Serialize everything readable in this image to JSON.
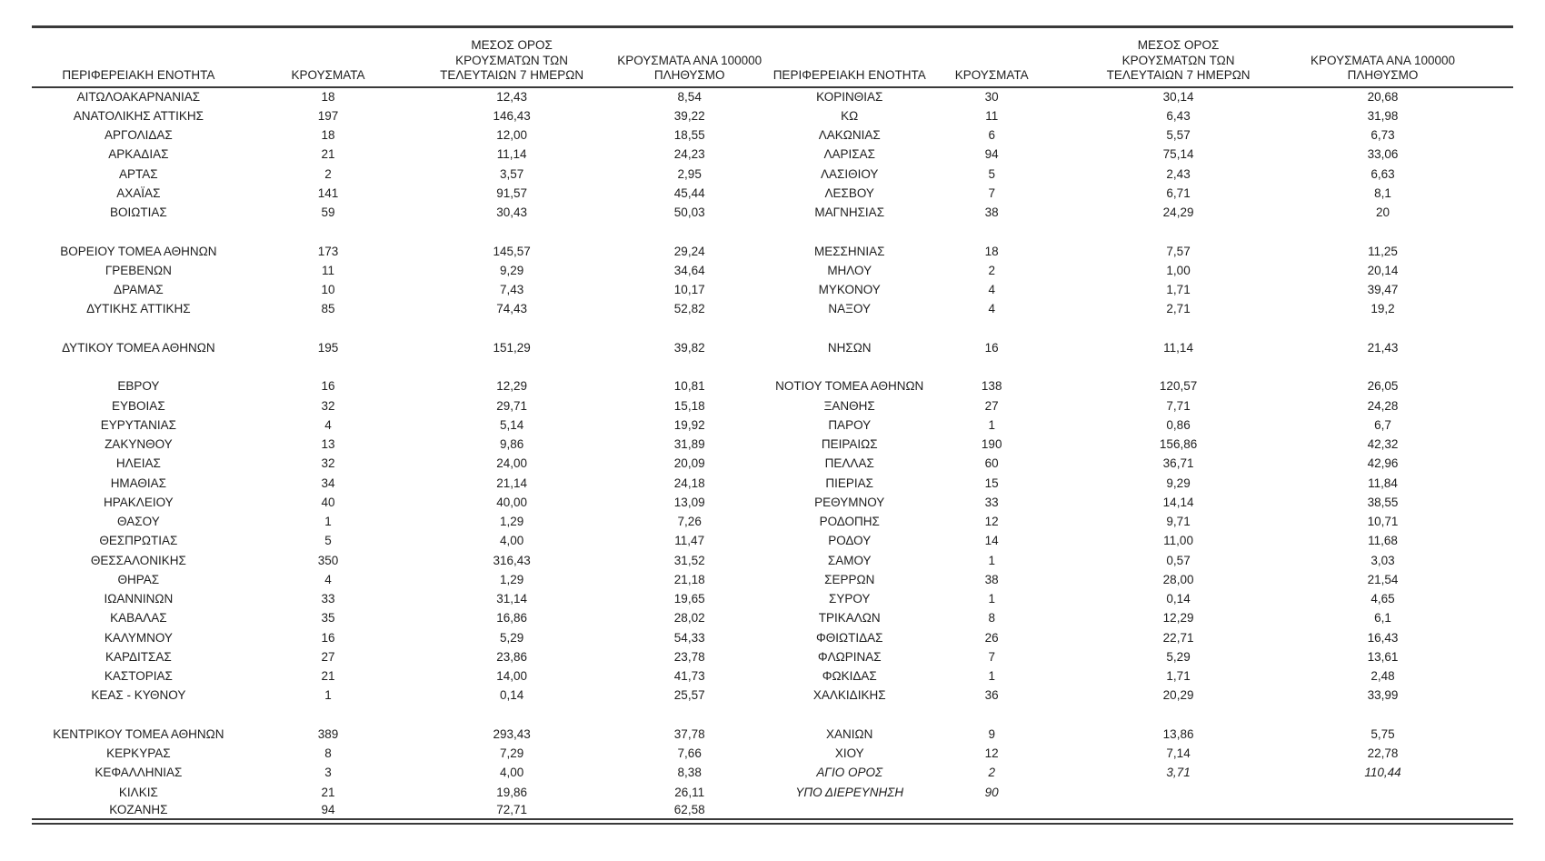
{
  "table": {
    "headers": {
      "region": "ΠΕΡΙΦΕΡΕΙΑΚΗ ΕΝΟΤΗΤΑ",
      "cases": "ΚΡΟΥΣΜΑΤΑ",
      "avg7_line1": "ΜΕΣΟΣ ΟΡΟΣ",
      "avg7_line2": "ΚΡΟΥΣΜΑΤΩΝ ΤΩΝ",
      "avg7_line3": "ΤΕΛΕΥΤΑΙΩΝ 7 ΗΜΕΡΩΝ",
      "per100k_line1": "ΚΡΟΥΣΜΑΤΑ ΑΝΑ 100000",
      "per100k_line2": "ΠΛΗΘΥΣΜΟ"
    },
    "rows": [
      {
        "l": [
          "ΑΙΤΩΛΟΑΚΑΡΝΑΝΙΑΣ",
          "18",
          "12,43",
          "8,54"
        ],
        "r": [
          "ΚΟΡΙΝΘΙΑΣ",
          "30",
          "30,14",
          "20,68"
        ]
      },
      {
        "l": [
          "ΑΝΑΤΟΛΙΚΗΣ ΑΤΤΙΚΗΣ",
          "197",
          "146,43",
          "39,22"
        ],
        "r": [
          "ΚΩ",
          "11",
          "6,43",
          "31,98"
        ]
      },
      {
        "l": [
          "ΑΡΓΟΛΙΔΑΣ",
          "18",
          "12,00",
          "18,55"
        ],
        "r": [
          "ΛΑΚΩΝΙΑΣ",
          "6",
          "5,57",
          "6,73"
        ]
      },
      {
        "l": [
          "ΑΡΚΑΔΙΑΣ",
          "21",
          "11,14",
          "24,23"
        ],
        "r": [
          "ΛΑΡΙΣΑΣ",
          "94",
          "75,14",
          "33,06"
        ]
      },
      {
        "l": [
          "ΑΡΤΑΣ",
          "2",
          "3,57",
          "2,95"
        ],
        "r": [
          "ΛΑΣΙΘΙΟΥ",
          "5",
          "2,43",
          "6,63"
        ]
      },
      {
        "l": [
          "ΑΧΑΪΑΣ",
          "141",
          "91,57",
          "45,44"
        ],
        "r": [
          "ΛΕΣΒΟΥ",
          "7",
          "6,71",
          "8,1"
        ]
      },
      {
        "l": [
          "ΒΟΙΩΤΙΑΣ",
          "59",
          "30,43",
          "50,03"
        ],
        "r": [
          "ΜΑΓΝΗΣΙΑΣ",
          "38",
          "24,29",
          "20"
        ]
      },
      {
        "l": null,
        "r": null
      },
      {
        "l": [
          "ΒΟΡΕΙΟΥ ΤΟΜΕΑ ΑΘΗΝΩΝ",
          "173",
          "145,57",
          "29,24"
        ],
        "r": [
          "ΜΕΣΣΗΝΙΑΣ",
          "18",
          "7,57",
          "11,25"
        ]
      },
      {
        "l": [
          "ΓΡΕΒΕΝΩΝ",
          "11",
          "9,29",
          "34,64"
        ],
        "r": [
          "ΜΗΛΟΥ",
          "2",
          "1,00",
          "20,14"
        ]
      },
      {
        "l": [
          "ΔΡΑΜΑΣ",
          "10",
          "7,43",
          "10,17"
        ],
        "r": [
          "ΜΥΚΟΝΟΥ",
          "4",
          "1,71",
          "39,47"
        ]
      },
      {
        "l": [
          "ΔΥΤΙΚΗΣ ΑΤΤΙΚΗΣ",
          "85",
          "74,43",
          "52,82"
        ],
        "r": [
          "ΝΑΞΟΥ",
          "4",
          "2,71",
          "19,2"
        ]
      },
      {
        "l": null,
        "r": null
      },
      {
        "l": [
          "ΔΥΤΙΚΟΥ ΤΟΜΕΑ ΑΘΗΝΩΝ",
          "195",
          "151,29",
          "39,82"
        ],
        "r": [
          "ΝΗΣΩΝ",
          "16",
          "11,14",
          "21,43"
        ]
      },
      {
        "l": null,
        "r": null
      },
      {
        "l": [
          "ΕΒΡΟΥ",
          "16",
          "12,29",
          "10,81"
        ],
        "r": [
          "ΝΟΤΙΟΥ ΤΟΜΕΑ ΑΘΗΝΩΝ",
          "138",
          "120,57",
          "26,05"
        ]
      },
      {
        "l": [
          "ΕΥΒΟΙΑΣ",
          "32",
          "29,71",
          "15,18"
        ],
        "r": [
          "ΞΑΝΘΗΣ",
          "27",
          "7,71",
          "24,28"
        ]
      },
      {
        "l": [
          "ΕΥΡΥΤΑΝΙΑΣ",
          "4",
          "5,14",
          "19,92"
        ],
        "r": [
          "ΠΑΡΟΥ",
          "1",
          "0,86",
          "6,7"
        ]
      },
      {
        "l": [
          "ΖΑΚΥΝΘΟΥ",
          "13",
          "9,86",
          "31,89"
        ],
        "r": [
          "ΠΕΙΡΑΙΩΣ",
          "190",
          "156,86",
          "42,32"
        ]
      },
      {
        "l": [
          "ΗΛΕΙΑΣ",
          "32",
          "24,00",
          "20,09"
        ],
        "r": [
          "ΠΕΛΛΑΣ",
          "60",
          "36,71",
          "42,96"
        ]
      },
      {
        "l": [
          "ΗΜΑΘΙΑΣ",
          "34",
          "21,14",
          "24,18"
        ],
        "r": [
          "ΠΙΕΡΙΑΣ",
          "15",
          "9,29",
          "11,84"
        ]
      },
      {
        "l": [
          "ΗΡΑΚΛΕΙΟΥ",
          "40",
          "40,00",
          "13,09"
        ],
        "r": [
          "ΡΕΘΥΜΝΟΥ",
          "33",
          "14,14",
          "38,55"
        ]
      },
      {
        "l": [
          "ΘΑΣΟΥ",
          "1",
          "1,29",
          "7,26"
        ],
        "r": [
          "ΡΟΔΟΠΗΣ",
          "12",
          "9,71",
          "10,71"
        ]
      },
      {
        "l": [
          "ΘΕΣΠΡΩΤΙΑΣ",
          "5",
          "4,00",
          "11,47"
        ],
        "r": [
          "ΡΟΔΟΥ",
          "14",
          "11,00",
          "11,68"
        ]
      },
      {
        "l": [
          "ΘΕΣΣΑΛΟΝΙΚΗΣ",
          "350",
          "316,43",
          "31,52"
        ],
        "r": [
          "ΣΑΜΟΥ",
          "1",
          "0,57",
          "3,03"
        ]
      },
      {
        "l": [
          "ΘΗΡΑΣ",
          "4",
          "1,29",
          "21,18"
        ],
        "r": [
          "ΣΕΡΡΩΝ",
          "38",
          "28,00",
          "21,54"
        ]
      },
      {
        "l": [
          "ΙΩΑΝΝΙΝΩΝ",
          "33",
          "31,14",
          "19,65"
        ],
        "r": [
          "ΣΥΡΟΥ",
          "1",
          "0,14",
          "4,65"
        ]
      },
      {
        "l": [
          "ΚΑΒΑΛΑΣ",
          "35",
          "16,86",
          "28,02"
        ],
        "r": [
          "ΤΡΙΚΑΛΩΝ",
          "8",
          "12,29",
          "6,1"
        ]
      },
      {
        "l": [
          "ΚΑΛΥΜΝΟΥ",
          "16",
          "5,29",
          "54,33"
        ],
        "r": [
          "ΦΘΙΩΤΙΔΑΣ",
          "26",
          "22,71",
          "16,43"
        ]
      },
      {
        "l": [
          "ΚΑΡΔΙΤΣΑΣ",
          "27",
          "23,86",
          "23,78"
        ],
        "r": [
          "ΦΛΩΡΙΝΑΣ",
          "7",
          "5,29",
          "13,61"
        ]
      },
      {
        "l": [
          "ΚΑΣΤΟΡΙΑΣ",
          "21",
          "14,00",
          "41,73"
        ],
        "r": [
          "ΦΩΚΙΔΑΣ",
          "1",
          "1,71",
          "2,48"
        ]
      },
      {
        "l": [
          "ΚΕΑΣ - ΚΥΘΝΟΥ",
          "1",
          "0,14",
          "25,57"
        ],
        "r": [
          "ΧΑΛΚΙΔΙΚΗΣ",
          "36",
          "20,29",
          "33,99"
        ]
      },
      {
        "l": null,
        "r": null
      },
      {
        "l": [
          "ΚΕΝΤΡΙΚΟΥ ΤΟΜΕΑ ΑΘΗΝΩΝ",
          "389",
          "293,43",
          "37,78"
        ],
        "r": [
          "ΧΑΝΙΩΝ",
          "9",
          "13,86",
          "5,75"
        ]
      },
      {
        "l": [
          "ΚΕΡΚΥΡΑΣ",
          "8",
          "7,29",
          "7,66"
        ],
        "r": [
          "ΧΙΟΥ",
          "12",
          "7,14",
          "22,78"
        ]
      },
      {
        "l": [
          "ΚΕΦΑΛΛΗΝΙΑΣ",
          "3",
          "4,00",
          "8,38"
        ],
        "r": [
          "ΑΓΙΟ ΟΡΟΣ",
          "2",
          "3,71",
          "110,44"
        ],
        "r_italic": true
      },
      {
        "l": [
          "ΚΙΛΚΙΣ",
          "21",
          "19,86",
          "26,11"
        ],
        "r": [
          "ΥΠΟ ΔΙΕΡΕΥΝΗΣΗ",
          "90",
          "",
          ""
        ],
        "r_italic": true
      },
      {
        "l": [
          "ΚΟΖΑΝΗΣ",
          "94",
          "72,71",
          "62,58"
        ],
        "r": null
      }
    ]
  },
  "colors": {
    "text": "#1e1e1e",
    "rule": "#3a3a3a",
    "background": "#ffffff"
  }
}
